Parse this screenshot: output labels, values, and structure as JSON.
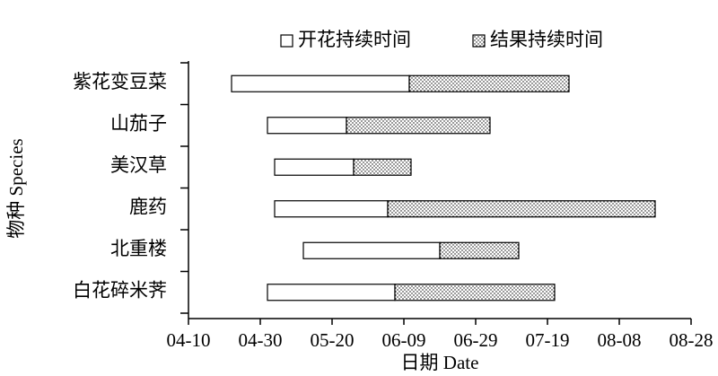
{
  "chart_data": {
    "type": "floating-bar",
    "orientation": "horizontal",
    "x_label": "日期 Date",
    "y_label": "物种 Species",
    "categories": [
      "紫花变豆菜",
      "山茄子",
      "美汉草",
      "鹿药",
      "北重楼",
      "白花碎米荠"
    ],
    "series": [
      {
        "name": "开花持续时间",
        "color": "#ffffff",
        "pattern": "none",
        "values": [
          [
            112,
            161.5
          ],
          [
            122,
            144
          ],
          [
            124,
            146
          ],
          [
            124,
            155.5
          ],
          [
            132,
            170
          ],
          [
            122,
            157.5
          ]
        ]
      },
      {
        "name": "结果持续时间",
        "color": "#ffffff",
        "pattern": "dots",
        "values": [
          [
            161.5,
            206
          ],
          [
            144,
            184
          ],
          [
            146,
            162
          ],
          [
            155.5,
            230
          ],
          [
            170,
            192
          ],
          [
            157.5,
            202
          ]
        ]
      }
    ],
    "xlim": [
      100,
      240
    ],
    "xticks": [
      {
        "value": 100,
        "label": "04-10"
      },
      {
        "value": 120,
        "label": "04-30"
      },
      {
        "value": 140,
        "label": "05-20"
      },
      {
        "value": 160,
        "label": "06-09"
      },
      {
        "value": 180,
        "label": "06-29"
      },
      {
        "value": 200,
        "label": "07-19"
      },
      {
        "value": 220,
        "label": "08-08"
      },
      {
        "value": 240,
        "label": "08-28"
      }
    ]
  }
}
